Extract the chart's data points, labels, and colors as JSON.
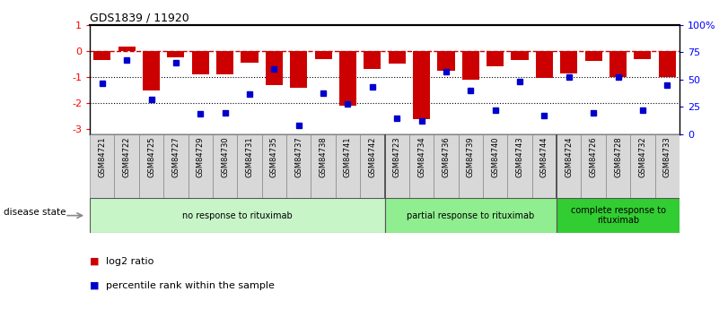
{
  "title": "GDS1839 / 11920",
  "samples": [
    "GSM84721",
    "GSM84722",
    "GSM84725",
    "GSM84727",
    "GSM84729",
    "GSM84730",
    "GSM84731",
    "GSM84735",
    "GSM84737",
    "GSM84738",
    "GSM84741",
    "GSM84742",
    "GSM84723",
    "GSM84734",
    "GSM84736",
    "GSM84739",
    "GSM84740",
    "GSM84743",
    "GSM84744",
    "GSM84724",
    "GSM84726",
    "GSM84728",
    "GSM84732",
    "GSM84733"
  ],
  "log2_ratio": [
    -0.35,
    0.15,
    -1.5,
    -0.25,
    -0.9,
    -0.9,
    -0.45,
    -1.3,
    -1.4,
    -0.3,
    -2.1,
    -0.7,
    -0.5,
    -2.6,
    -0.75,
    -1.1,
    -0.6,
    -0.35,
    -1.05,
    -0.85,
    -0.4,
    -1.0,
    -0.3,
    -1.0
  ],
  "percentile_rank": [
    47,
    68,
    32,
    65,
    19,
    20,
    37,
    60,
    8,
    38,
    28,
    43,
    15,
    12,
    57,
    40,
    22,
    48,
    17,
    52,
    20,
    52,
    22,
    45
  ],
  "group_labels": [
    "no response to rituximab",
    "partial response to rituximab",
    "complete response to\nrituximab"
  ],
  "group_ranges": [
    [
      0,
      12
    ],
    [
      12,
      19
    ],
    [
      19,
      24
    ]
  ],
  "group_colors": [
    "#c8f5c8",
    "#90ee90",
    "#32cd32"
  ],
  "bar_color": "#cc0000",
  "dot_color": "#0000cc",
  "bg_color": "#ffffff",
  "ylim_left": [
    -3.2,
    1.0
  ],
  "ylim_right": [
    0,
    100
  ],
  "right_ticks": [
    0,
    25,
    50,
    75,
    100
  ],
  "right_tick_labels": [
    "0",
    "25",
    "50",
    "75",
    "100%"
  ],
  "left_ticks": [
    -3,
    -2,
    -1,
    0,
    1
  ],
  "dotted_lines": [
    -1,
    -2
  ],
  "disease_state_label": "disease state",
  "legend_items": [
    [
      "log2 ratio",
      "#cc0000"
    ],
    [
      "percentile rank within the sample",
      "#0000cc"
    ]
  ]
}
